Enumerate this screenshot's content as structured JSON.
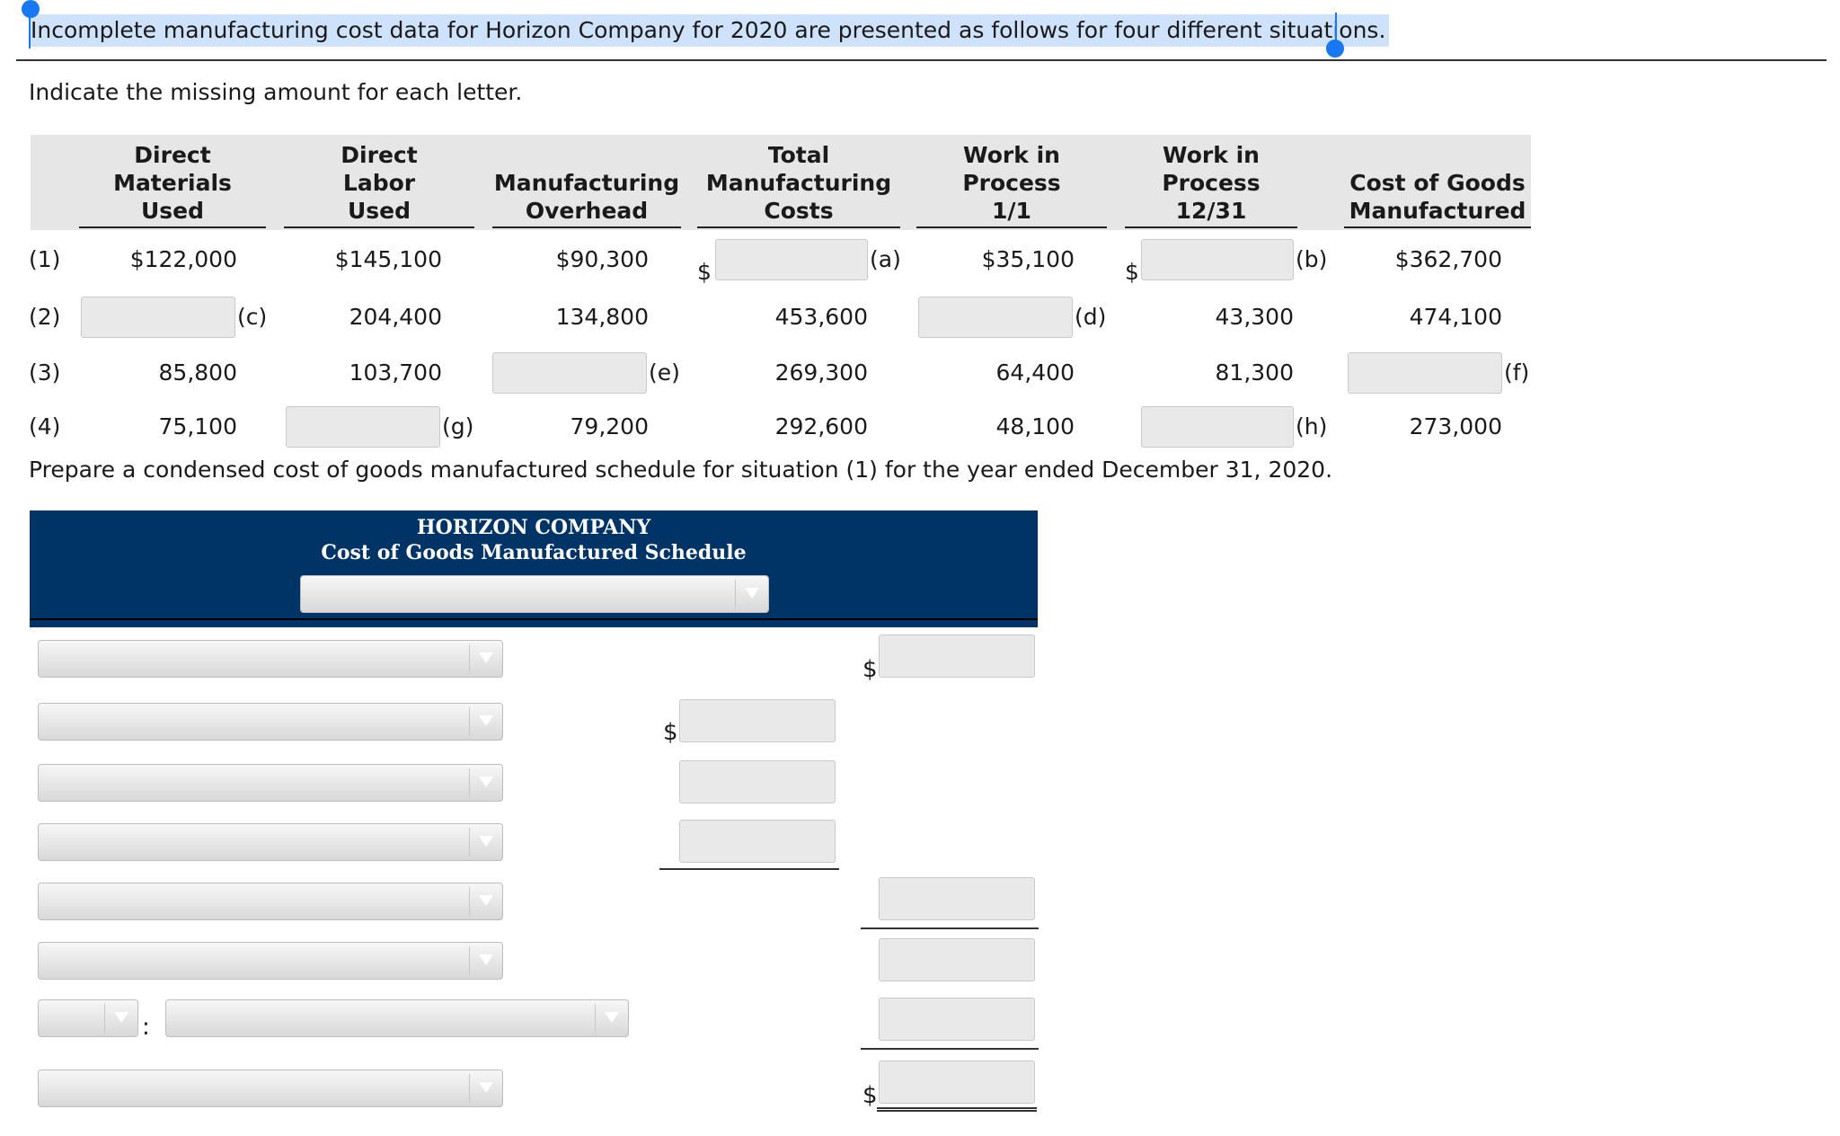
{
  "intro": {
    "text": "Incomplete manufacturing cost data for Horizon Company for 2020 are presented as follows for four different situations."
  },
  "instruction": "Indicate the missing amount for each letter.",
  "table": {
    "headers": [
      "Direct\nMaterials\nUsed",
      "Direct\nLabor\nUsed",
      "Manufacturing\nOverhead",
      "Total\nManufacturing\nCosts",
      "Work in\nProcess\n1/1",
      "Work in\nProcess\n12/31",
      "Cost of Goods\nManufactured"
    ],
    "rows": [
      {
        "id": "(1)",
        "dm": "$122,000",
        "dl": "$145,100",
        "moh": "$90,300",
        "tmc_letter": "(a)",
        "wip1": "$35,100",
        "wip2_letter": "(b)",
        "cogm": "$362,700",
        "currency": "$"
      },
      {
        "id": "(2)",
        "dm_letter": "(c)",
        "dl": "204,400",
        "moh": "134,800",
        "tmc": "453,600",
        "wip1_letter": "(d)",
        "wip2": "43,300",
        "cogm": "474,100"
      },
      {
        "id": "(3)",
        "dm": "85,800",
        "dl": "103,700",
        "moh_letter": "(e)",
        "tmc": "269,300",
        "wip1": "64,400",
        "wip2": "81,300",
        "cogm_letter": "(f)"
      },
      {
        "id": "(4)",
        "dm": "75,100",
        "dl_letter": "(g)",
        "moh": "79,200",
        "tmc": "292,600",
        "wip1": "48,100",
        "wip2_letter": "(h)",
        "cogm": "273,000"
      }
    ]
  },
  "prepare_text": "Prepare a condensed cost of goods manufactured schedule for situation (1) for the year ended December 31, 2020.",
  "schedule": {
    "company": "HORIZON COMPANY",
    "title": "Cost of Goods Manufactured Schedule",
    "currency": "$",
    "colon": ":"
  }
}
